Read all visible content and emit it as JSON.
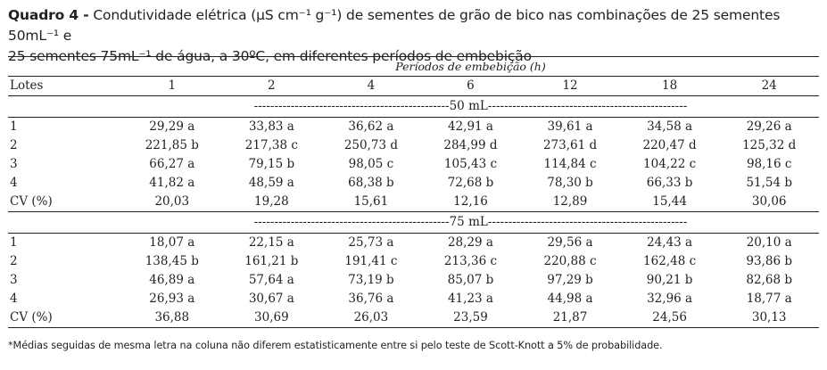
{
  "caption": {
    "label": "Quadro 4 -",
    "text_line1": "Condutividade elétrica (µS cm⁻¹ g⁻¹) de sementes de grão de bico nas combinações de 25 sementes 50mL⁻¹ e",
    "text_line2": "25 sementes 75mL⁻¹ de água, a 30ºC, em diferentes períodos de embebição"
  },
  "table": {
    "group_header": "Períodos de embebição (h)",
    "lot_header": "Lotes",
    "periods": [
      "1",
      "2",
      "4",
      "6",
      "12",
      "18",
      "24"
    ],
    "sections": [
      {
        "label": "------------------------------------------------50 mL-------------------------------------------------",
        "rows": [
          {
            "lot": "1",
            "values": [
              "29,29 a",
              "33,83 a",
              "36,62 a",
              "42,91 a",
              "39,61 a",
              "34,58 a",
              "29,26 a"
            ]
          },
          {
            "lot": "2",
            "values": [
              "221,85 b",
              "217,38 c",
              "250,73 d",
              "284,99 d",
              "273,61 d",
              "220,47 d",
              "125,32 d"
            ]
          },
          {
            "lot": "3",
            "values": [
              "66,27 a",
              "79,15 b",
              "98,05 c",
              "105,43 c",
              "114,84 c",
              "104,22 c",
              "98,16 c"
            ]
          },
          {
            "lot": "4",
            "values": [
              "41,82 a",
              "48,59 a",
              "68,38 b",
              "72,68 b",
              "78,30 b",
              "66,33 b",
              "51,54 b"
            ]
          },
          {
            "lot": "CV (%)",
            "values": [
              "20,03",
              "19,28",
              "15,61",
              "12,16",
              "12,89",
              "15,44",
              "30,06"
            ]
          }
        ]
      },
      {
        "label": "------------------------------------------------75 mL-------------------------------------------------",
        "rows": [
          {
            "lot": "1",
            "values": [
              "18,07 a",
              "22,15 a",
              "25,73 a",
              "28,29 a",
              "29,56 a",
              "24,43 a",
              "20,10 a"
            ]
          },
          {
            "lot": "2",
            "values": [
              "138,45 b",
              "161,21 b",
              "191,41 c",
              "213,36 c",
              "220,88 c",
              "162,48 c",
              "93,86 b"
            ]
          },
          {
            "lot": "3",
            "values": [
              "46,89 a",
              "57,64 a",
              "73,19 b",
              "85,07 b",
              "97,29 b",
              "90,21 b",
              "82,68 b"
            ]
          },
          {
            "lot": "4",
            "values": [
              "26,93 a",
              "30,67 a",
              "36,76 a",
              "41,23 a",
              "44,98 a",
              "32,96 a",
              "18,77 a"
            ]
          },
          {
            "lot": "CV (%)",
            "values": [
              "36,88",
              "30,69",
              "26,03",
              "23,59",
              "21,87",
              "24,56",
              "30,13"
            ]
          }
        ]
      }
    ]
  },
  "footnote": "*Médias seguidas de mesma letra na coluna não diferem estatisticamente entre si pelo teste de Scott-Knott a 5% de probabilidade."
}
